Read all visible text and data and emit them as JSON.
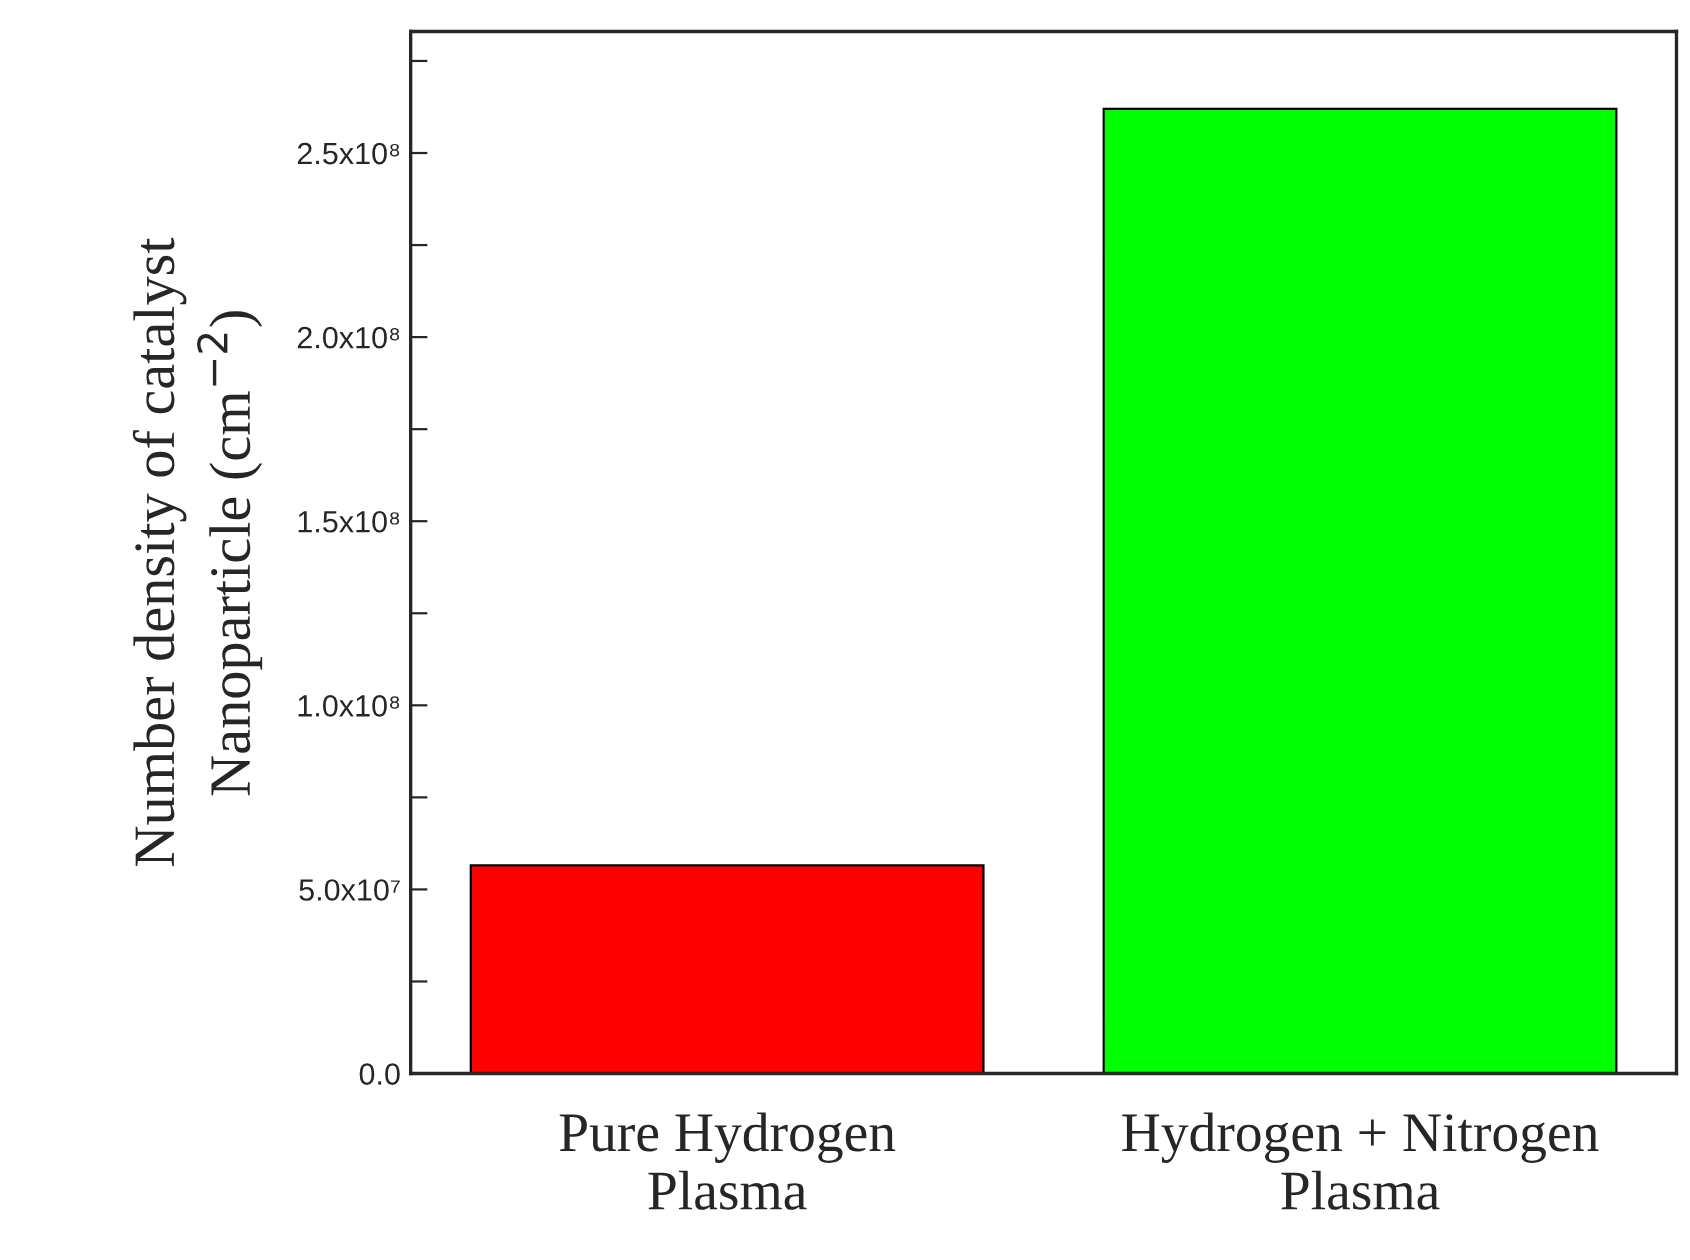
{
  "chart_data": {
    "type": "bar",
    "ylabel": "Number density of catalyst\nNanoparticle (cm$^{−2}$)",
    "categories": [
      "Pure Hydrogen\nPlasma",
      "Hydrogen + Nitrogen\nPlasma"
    ],
    "values": [
      56500000,
      262000000
    ],
    "colors": [
      "#ff0000",
      "#00ff00"
    ],
    "ylim": [
      0,
      283000000
    ],
    "yticks": [
      {
        "value": 0,
        "label": "0.0"
      },
      {
        "value": 25000000,
        "label": null
      },
      {
        "value": 50000000,
        "label": "5.0x10⁷"
      },
      {
        "value": 75000000,
        "label": null
      },
      {
        "value": 100000000,
        "label": "1.0x10⁸"
      },
      {
        "value": 125000000,
        "label": null
      },
      {
        "value": 150000000,
        "label": "1.5x10⁸"
      },
      {
        "value": 175000000,
        "label": null
      },
      {
        "value": 200000000,
        "label": "2.0x10⁸"
      },
      {
        "value": 225000000,
        "label": null
      },
      {
        "value": 250000000,
        "label": "2.5x10⁸"
      },
      {
        "value": 275000000,
        "label": null
      }
    ]
  }
}
